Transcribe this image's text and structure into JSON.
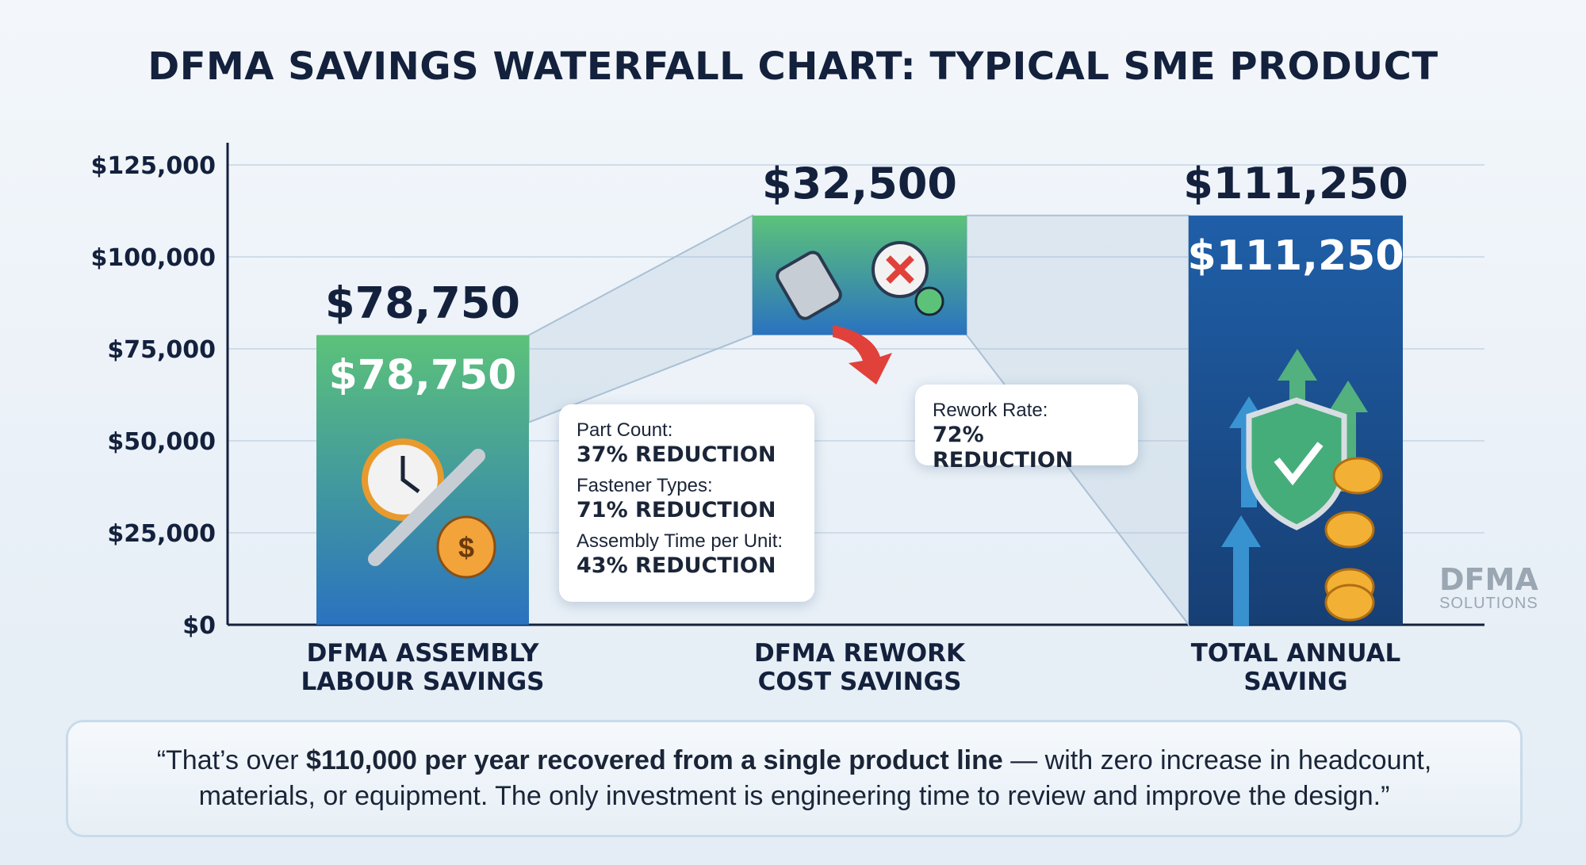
{
  "chart_data": {
    "type": "waterfall",
    "title": "DFMA SAVINGS WATERFALL CHART: TYPICAL SME PRODUCT",
    "categories": [
      "DFMA ASSEMBLY LABOUR SAVINGS",
      "DFMA REWORK COST SAVINGS",
      "TOTAL ANNUAL SAVING"
    ],
    "category_lines": [
      [
        "DFMA ASSEMBLY",
        "LABOUR SAVINGS"
      ],
      [
        "DFMA REWORK",
        "COST SAVINGS"
      ],
      [
        "TOTAL ANNUAL",
        "SAVING"
      ]
    ],
    "values": [
      78750,
      32500,
      111250
    ],
    "bar_types": [
      "increase",
      "increase",
      "total"
    ],
    "value_labels": [
      "$78,750",
      "$32,500",
      "$111,250"
    ],
    "inner_labels": [
      "$78,750",
      "",
      "$111,250"
    ],
    "ylim": [
      0,
      125000
    ],
    "yticks": [
      0,
      25000,
      50000,
      75000,
      100000,
      125000
    ],
    "ytick_labels": [
      "$0",
      "$25,000",
      "$50,000",
      "$75,000",
      "$100,000",
      "$125,000"
    ],
    "grid": true,
    "colors": {
      "green": "#5cc27a",
      "blue": "#2a72c0",
      "total_top": "#1f5fa8",
      "total_bottom": "#173f74",
      "axis": "#14213d"
    }
  },
  "callouts": {
    "labour": [
      {
        "label": "Part Count:",
        "value": "37% REDUCTION"
      },
      {
        "label": "Fastener Types:",
        "value": "71% REDUCTION"
      },
      {
        "label": "Assembly Time per Unit:",
        "value": "43% REDUCTION"
      }
    ],
    "rework": [
      {
        "label": "Rework Rate:",
        "value": "72% REDUCTION"
      }
    ]
  },
  "quote": {
    "open": "“That’s over ",
    "bold": "$110,000 per year recovered from a single product line",
    "rest": " — with zero increase in headcount, materials, or equipment. The only investment is engineering time to review and improve the design.”"
  },
  "logo": {
    "name": "DFMA",
    "sub": "SOLUTIONS"
  }
}
